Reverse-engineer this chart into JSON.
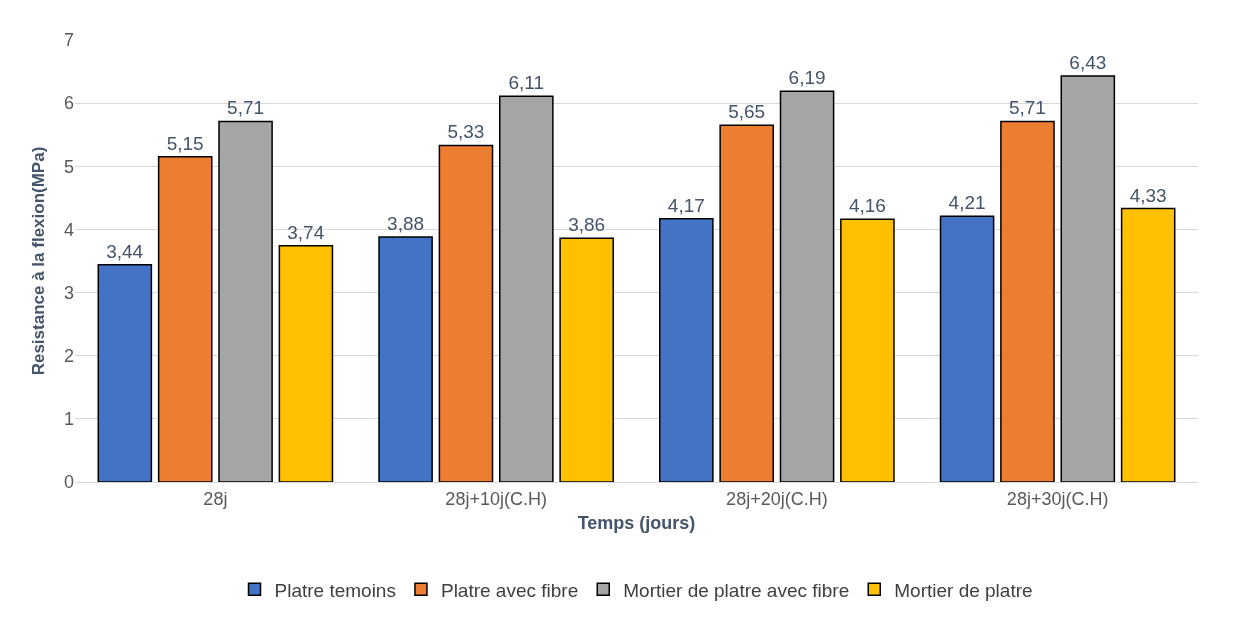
{
  "chart_data": {
    "type": "bar",
    "xlabel": "Temps (jours)",
    "ylabel": "Resistance à la flexion(MPa)",
    "categories": [
      "28j",
      "28j+10j(C.H)",
      "28j+20j(C.H)",
      "28j+30j(C.H)"
    ],
    "series": [
      {
        "name": "Platre temoins",
        "color": "#4472c4",
        "values": [
          3.44,
          3.88,
          4.17,
          4.21
        ],
        "value_labels": [
          "3,44",
          "3,88",
          "4,17",
          "4,21"
        ]
      },
      {
        "name": "Platre avec fibre",
        "color": "#ed7d31",
        "values": [
          5.15,
          5.33,
          5.65,
          5.71
        ],
        "value_labels": [
          "5,15",
          "5,33",
          "5,65",
          "5,71"
        ]
      },
      {
        "name": "Mortier de platre avec fibre",
        "color": "#a5a5a5",
        "values": [
          5.71,
          6.11,
          6.19,
          6.43
        ],
        "value_labels": [
          "5,71",
          "6,11",
          "6,19",
          "6,43"
        ]
      },
      {
        "name": "Mortier de platre",
        "color": "#ffc000",
        "values": [
          3.74,
          3.86,
          4.16,
          4.33
        ],
        "value_labels": [
          "3,74",
          "3,86",
          "4,16",
          "4,33"
        ]
      }
    ],
    "ylim": [
      0,
      7
    ],
    "yticks": [
      0,
      1,
      2,
      3,
      4,
      5,
      6,
      7
    ],
    "grid": "y",
    "legend": "bottom"
  }
}
